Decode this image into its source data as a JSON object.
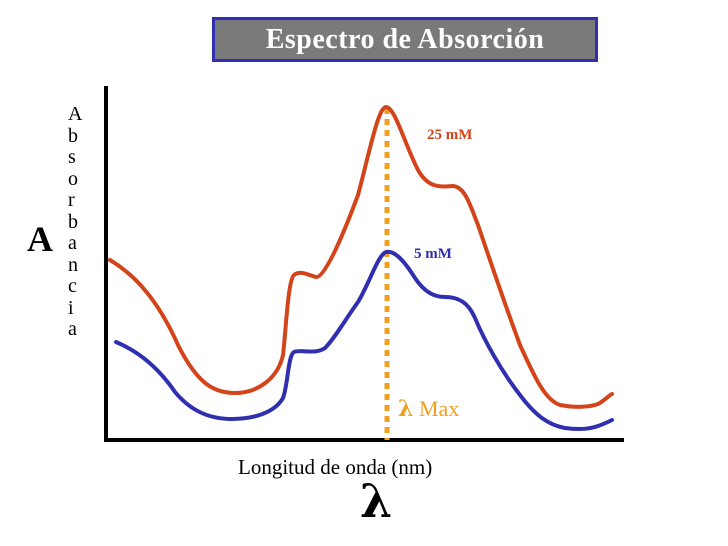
{
  "title": "Espectro de Absorción",
  "y_axis": {
    "symbol": "A",
    "label_letters": [
      "A",
      "b",
      "s",
      "o",
      "r",
      "b",
      "a",
      "n",
      "c",
      "i",
      "a"
    ]
  },
  "x_axis": {
    "label": "Longitud de onda (nm)",
    "symbol": "λ"
  },
  "lambda_max": {
    "symbol": "λ",
    "text": "Max"
  },
  "series": [
    {
      "name": "25 mM",
      "color": "#d4441a"
    },
    {
      "name": "5 mM",
      "color": "#2f2fb0"
    }
  ],
  "colors": {
    "title_background": "#7a7a7a",
    "title_border": "#2f2fb0",
    "lambda_max_line": "#f0a020",
    "axes": "#000000"
  }
}
